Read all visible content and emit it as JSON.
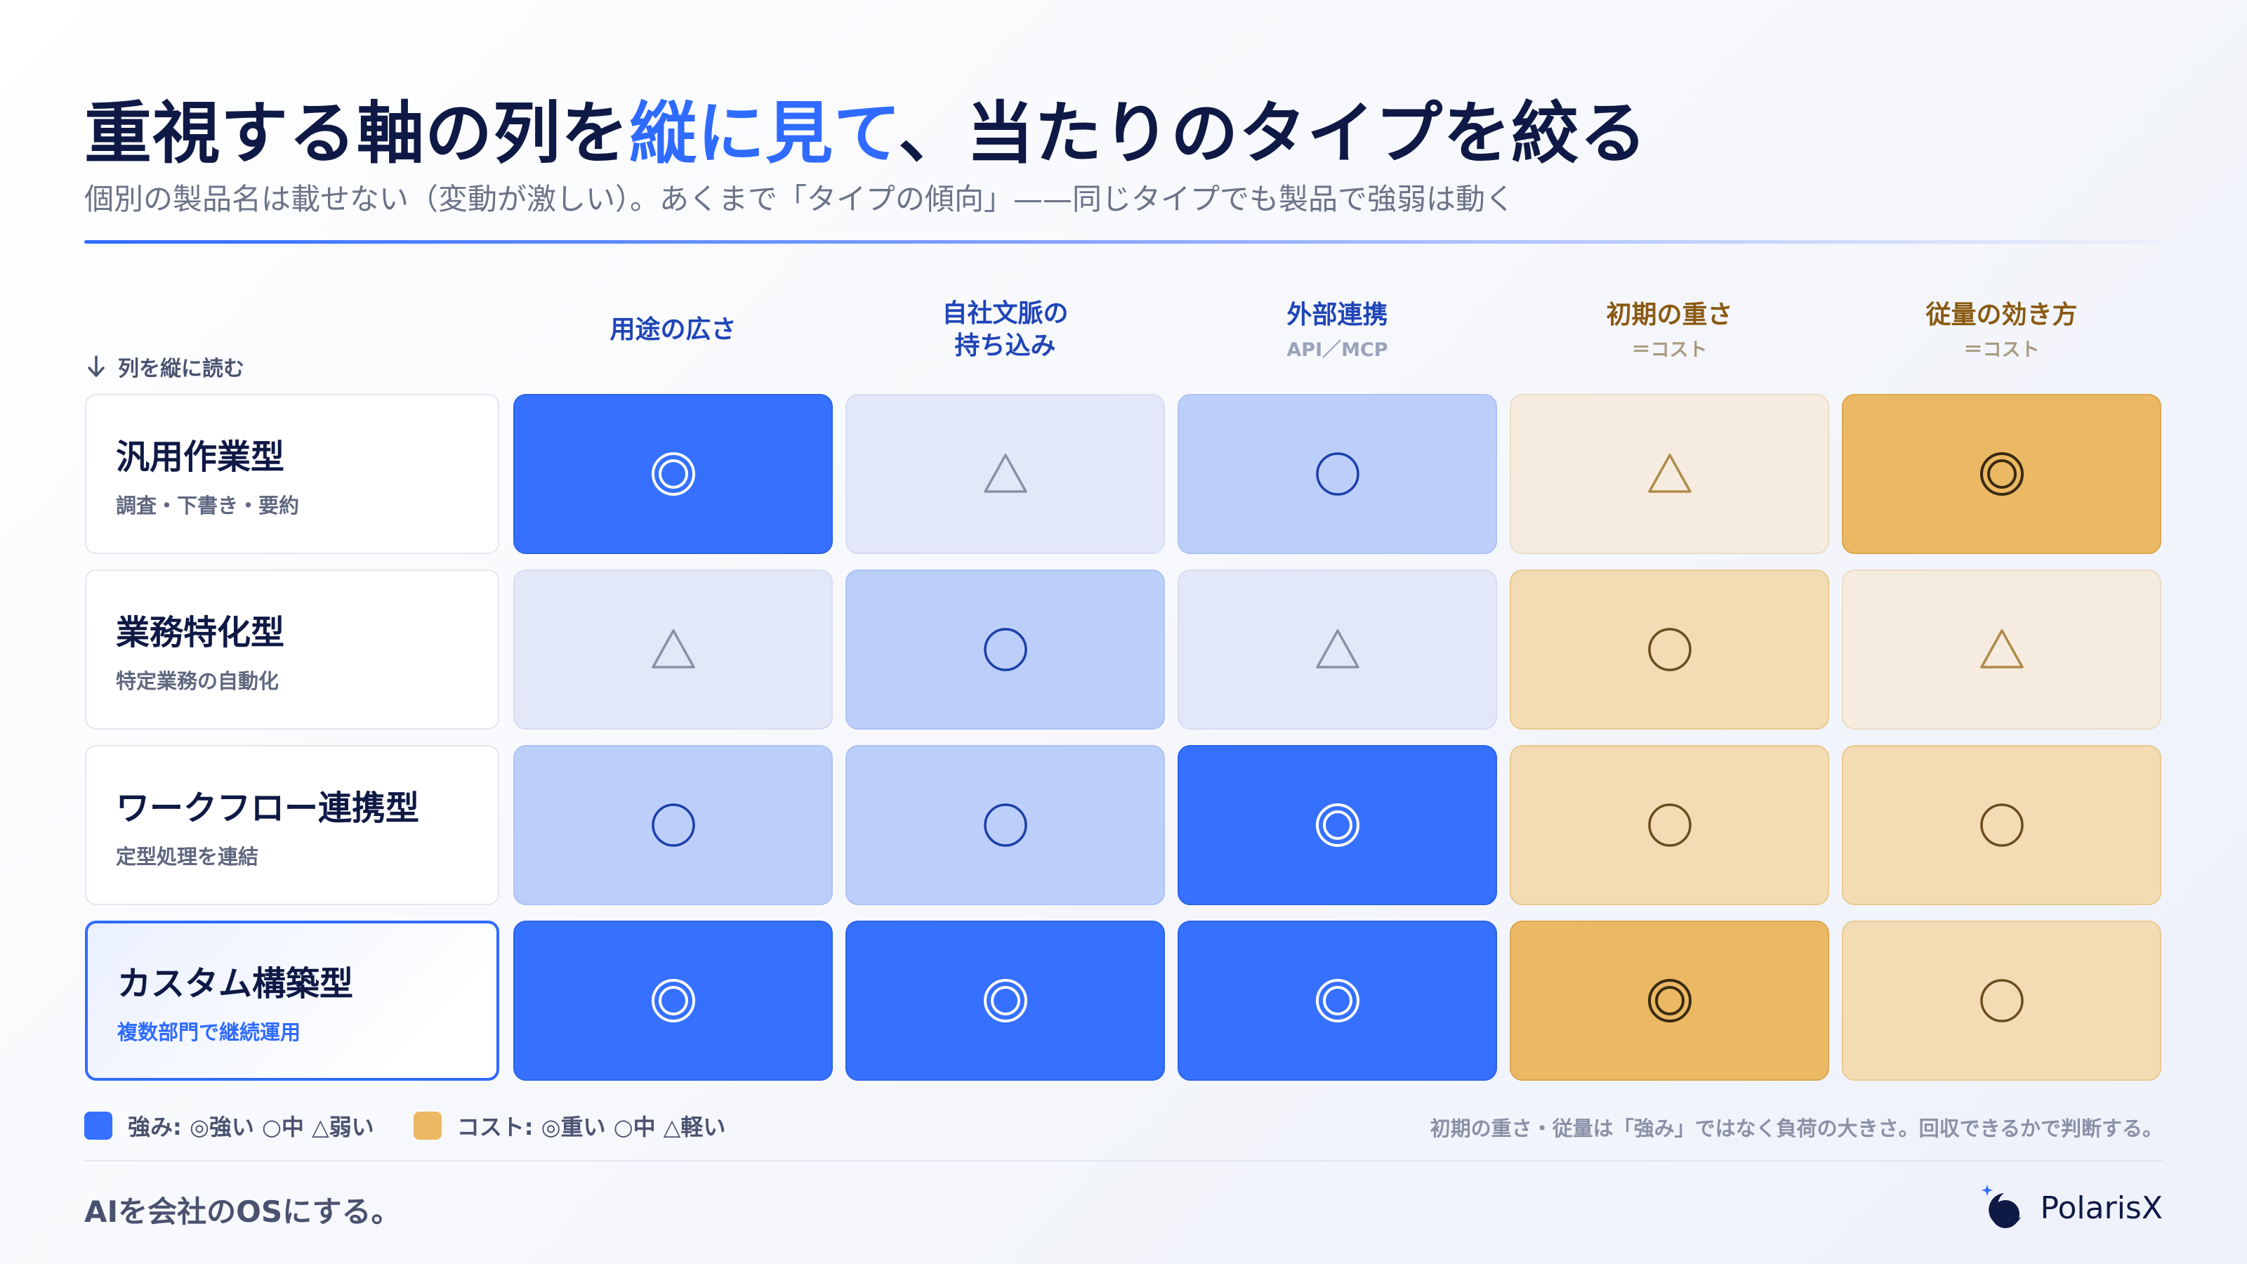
{
  "title": {
    "pre": "重視する軸の列を",
    "accent": "縦に見て",
    "post": "、当たりのタイプを絞る"
  },
  "subtitle": "個別の製品名は載せない（変動が激しい）。あくまで「タイプの傾向」——同じタイプでも製品で強弱は動く",
  "read_hint": "列を縦に読む",
  "columns": [
    {
      "label_line1": "用途の広さ",
      "label_line2": "",
      "sub": "",
      "group": "strength"
    },
    {
      "label_line1": "自社文脈の",
      "label_line2": "持ち込み",
      "sub": "",
      "group": "strength"
    },
    {
      "label_line1": "外部連携",
      "label_line2": "",
      "sub": "API／MCP",
      "group": "strength"
    },
    {
      "label_line1": "初期の重さ",
      "label_line2": "",
      "sub": "＝コスト",
      "group": "cost"
    },
    {
      "label_line1": "従量の効き方",
      "label_line2": "",
      "sub": "＝コスト",
      "group": "cost"
    }
  ],
  "rows": [
    {
      "name": "汎用作業型",
      "desc": "調査・下書き・要約",
      "ratings": [
        "strong",
        "weak",
        "mid",
        "weak",
        "strong"
      ],
      "highlighted": false
    },
    {
      "name": "業務特化型",
      "desc": "特定業務の自動化",
      "ratings": [
        "weak",
        "mid",
        "weak",
        "mid",
        "weak"
      ],
      "highlighted": false
    },
    {
      "name": "ワークフロー連携型",
      "desc": "定型処理を連結",
      "ratings": [
        "mid",
        "mid",
        "strong",
        "mid",
        "mid"
      ],
      "highlighted": false
    },
    {
      "name": "カスタム構築型",
      "desc": "複数部門で継続運用",
      "ratings": [
        "strong",
        "strong",
        "strong",
        "strong",
        "mid"
      ],
      "highlighted": true
    }
  ],
  "symbols": {
    "strong": "◎",
    "mid": "○",
    "weak": "△"
  },
  "legend": {
    "strength": "強み: ◎強い ○中 △弱い",
    "cost": "コスト: ◎重い ○中 △軽い",
    "note": "初期の重さ・従量は「強み」ではなく負荷の大きさ。回収できるかで判断する。"
  },
  "colors": {
    "accent_blue": "#2f6bff",
    "strength_strong": "#3570ff",
    "strength_mid": "#bccffb",
    "strength_weak": "#e3e8f8",
    "cost_strong": "#ebb963",
    "cost_mid": "#f3dcb3",
    "cost_weak": "#f5ecdf",
    "legend_strength": "#3570ff",
    "legend_cost": "#ebb963"
  },
  "footer": {
    "tagline": "AIを会社のOSにする。",
    "brand": "PolarisX",
    "brand_icon": "polarisx-logo-icon"
  }
}
